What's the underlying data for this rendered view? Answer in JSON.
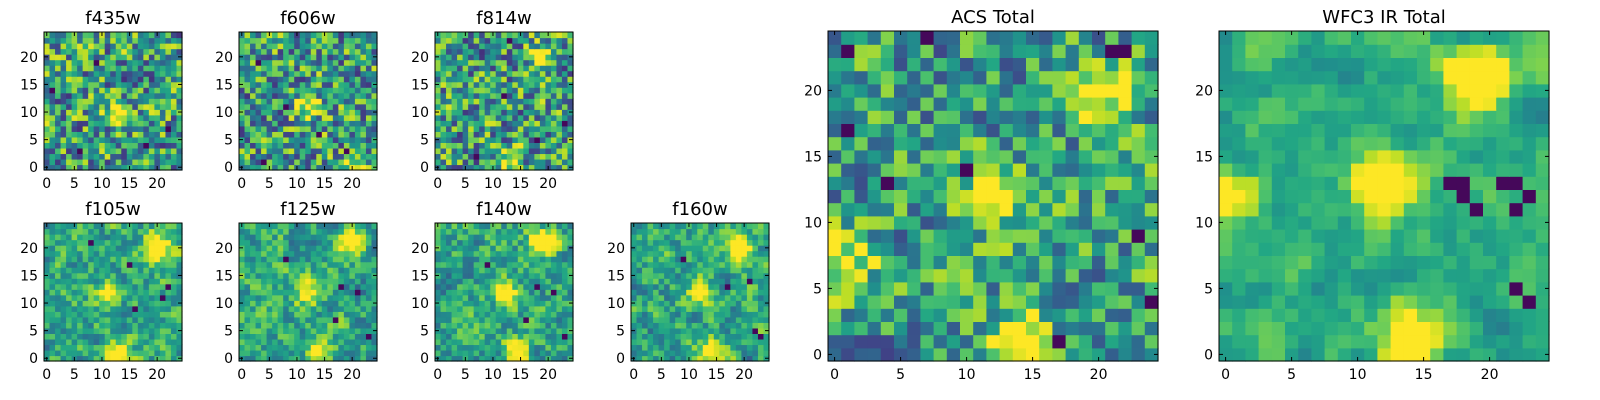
{
  "chart_data": [
    {
      "type": "heatmap",
      "title": "f435w",
      "colormap": "viridis",
      "xlim": [
        0,
        24
      ],
      "ylim": [
        0,
        24
      ],
      "xticks": [
        0,
        5,
        10,
        15,
        20
      ],
      "yticks": [
        0,
        5,
        10,
        15,
        20
      ],
      "grid": false,
      "hot": [
        [
          13,
          10,
          0.5
        ]
      ],
      "cold": [
        [
          1,
          14
        ],
        [
          6,
          3
        ],
        [
          18,
          4
        ],
        [
          9,
          19
        ],
        [
          22,
          7
        ]
      ],
      "seed": 11,
      "contrast": 0.9,
      "smooth": 0.15,
      "bias": 0.55
    },
    {
      "type": "heatmap",
      "title": "f606w",
      "colormap": "viridis",
      "xlim": [
        0,
        24
      ],
      "ylim": [
        0,
        24
      ],
      "xticks": [
        0,
        5,
        10,
        15,
        20
      ],
      "yticks": [
        0,
        5,
        10,
        15,
        20
      ],
      "grid": false,
      "hot": [
        [
          12,
          11,
          0.6
        ],
        [
          20,
          0,
          0.5
        ]
      ],
      "cold": [
        [
          3,
          19
        ],
        [
          8,
          11
        ],
        [
          19,
          3
        ],
        [
          14,
          6
        ],
        [
          4,
          1
        ]
      ],
      "seed": 23,
      "contrast": 0.9,
      "smooth": 0.15,
      "bias": 0.55
    },
    {
      "type": "heatmap",
      "title": "f814w",
      "colormap": "viridis",
      "xlim": [
        0,
        24
      ],
      "ylim": [
        0,
        24
      ],
      "xticks": [
        0,
        5,
        10,
        15,
        20
      ],
      "yticks": [
        0,
        5,
        10,
        15,
        20
      ],
      "grid": false,
      "hot": [
        [
          19,
          20,
          0.6
        ],
        [
          13,
          1,
          0.5
        ]
      ],
      "cold": [
        [
          13,
          23
        ],
        [
          23,
          8
        ],
        [
          7,
          2
        ],
        [
          12,
          13
        ],
        [
          18,
          5
        ]
      ],
      "seed": 37,
      "contrast": 0.9,
      "smooth": 0.15,
      "bias": 0.55
    },
    {
      "type": "heatmap",
      "title": "f105w",
      "colormap": "viridis",
      "xlim": [
        0,
        24
      ],
      "ylim": [
        0,
        24
      ],
      "xticks": [
        0,
        5,
        10,
        15,
        20
      ],
      "yticks": [
        0,
        5,
        10,
        15,
        20
      ],
      "grid": false,
      "hot": [
        [
          20,
          20,
          0.8
        ],
        [
          13,
          1,
          0.6
        ],
        [
          11,
          12,
          0.5
        ]
      ],
      "cold": [
        [
          21,
          11
        ],
        [
          22,
          13
        ],
        [
          16,
          9
        ],
        [
          8,
          21
        ],
        [
          15,
          17
        ]
      ],
      "seed": 41,
      "contrast": 0.75,
      "smooth": 0.5,
      "bias": 0.6
    },
    {
      "type": "heatmap",
      "title": "f125w",
      "colormap": "viridis",
      "xlim": [
        0,
        24
      ],
      "ylim": [
        0,
        24
      ],
      "xticks": [
        0,
        5,
        10,
        15,
        20
      ],
      "yticks": [
        0,
        5,
        10,
        15,
        20
      ],
      "grid": false,
      "hot": [
        [
          20,
          21,
          0.8
        ],
        [
          14,
          1,
          0.6
        ],
        [
          12,
          12,
          0.5
        ]
      ],
      "cold": [
        [
          21,
          12
        ],
        [
          18,
          13
        ],
        [
          17,
          7
        ],
        [
          8,
          18
        ],
        [
          23,
          4
        ]
      ],
      "seed": 53,
      "contrast": 0.75,
      "smooth": 0.5,
      "bias": 0.6
    },
    {
      "type": "heatmap",
      "title": "f140w",
      "colormap": "viridis",
      "xlim": [
        0,
        24
      ],
      "ylim": [
        0,
        24
      ],
      "xticks": [
        0,
        5,
        10,
        15,
        20
      ],
      "yticks": [
        0,
        5,
        10,
        15,
        20
      ],
      "grid": false,
      "hot": [
        [
          19,
          21,
          0.9
        ],
        [
          14,
          1,
          0.6
        ],
        [
          12,
          12,
          0.6
        ]
      ],
      "cold": [
        [
          18,
          13
        ],
        [
          21,
          12
        ],
        [
          16,
          7
        ],
        [
          9,
          17
        ],
        [
          23,
          4
        ]
      ],
      "seed": 67,
      "contrast": 0.75,
      "smooth": 0.5,
      "bias": 0.6
    },
    {
      "type": "heatmap",
      "title": "f160w",
      "colormap": "viridis",
      "xlim": [
        0,
        24
      ],
      "ylim": [
        0,
        24
      ],
      "xticks": [
        0,
        5,
        10,
        15,
        20
      ],
      "yticks": [
        0,
        5,
        10,
        15,
        20
      ],
      "grid": false,
      "hot": [
        [
          19,
          20,
          0.9
        ],
        [
          14,
          1,
          0.7
        ],
        [
          12,
          12,
          0.6
        ]
      ],
      "cold": [
        [
          17,
          13
        ],
        [
          22,
          5
        ],
        [
          23,
          4
        ],
        [
          21,
          14
        ],
        [
          9,
          18
        ]
      ],
      "seed": 79,
      "contrast": 0.75,
      "smooth": 0.5,
      "bias": 0.6
    },
    {
      "type": "heatmap",
      "title": "ACS Total",
      "colormap": "viridis",
      "xlim": [
        0,
        24
      ],
      "ylim": [
        0,
        24
      ],
      "xticks": [
        0,
        5,
        10,
        15,
        20
      ],
      "yticks": [
        0,
        5,
        10,
        15,
        20
      ],
      "grid": false,
      "hot": [
        [
          20,
          20,
          0.7
        ],
        [
          12,
          12,
          0.7
        ],
        [
          14,
          1,
          0.8
        ],
        [
          1,
          7,
          0.5
        ]
      ],
      "cold": [
        [
          1,
          23
        ],
        [
          7,
          24
        ],
        [
          21,
          23
        ],
        [
          22,
          23
        ],
        [
          24,
          4
        ],
        [
          1,
          17
        ],
        [
          17,
          1
        ],
        [
          23,
          9
        ],
        [
          10,
          14
        ],
        [
          4,
          13
        ]
      ],
      "seed": 97,
      "contrast": 0.8,
      "smooth": 0.25,
      "bias": 0.55
    },
    {
      "type": "heatmap",
      "title": "WFC3 IR Total",
      "colormap": "viridis",
      "xlim": [
        0,
        24
      ],
      "ylim": [
        0,
        24
      ],
      "xticks": [
        0,
        5,
        10,
        15,
        20
      ],
      "yticks": [
        0,
        5,
        10,
        15,
        20
      ],
      "grid": false,
      "hot": [
        [
          19,
          21,
          1.0
        ],
        [
          12,
          13,
          0.8
        ],
        [
          14,
          1,
          0.8
        ],
        [
          0,
          12,
          0.6
        ]
      ],
      "cold": [
        [
          17,
          13
        ],
        [
          18,
          13
        ],
        [
          18,
          12
        ],
        [
          19,
          11
        ],
        [
          21,
          13
        ],
        [
          22,
          13
        ],
        [
          22,
          5
        ],
        [
          23,
          4
        ],
        [
          22,
          11
        ],
        [
          23,
          12
        ]
      ],
      "seed": 113,
      "contrast": 0.65,
      "smooth": 0.75,
      "bias": 0.62
    }
  ]
}
